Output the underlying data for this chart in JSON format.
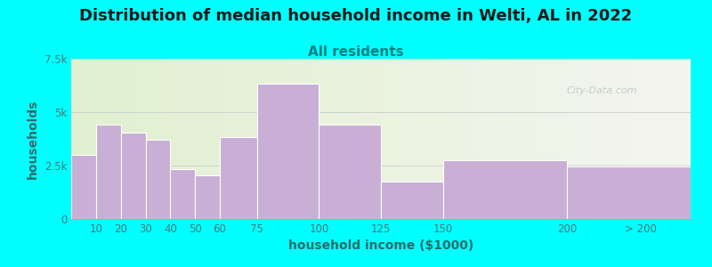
{
  "title": "Distribution of median household income in Welti, AL in 2022",
  "subtitle": "All residents",
  "xlabel": "household income ($1000)",
  "ylabel": "households",
  "bar_color": "#c9aed6",
  "bar_edgecolor": "#ffffff",
  "background_color": "#00ffff",
  "plot_bg_color_left": "#e0f0d0",
  "plot_bg_color_right": "#f5f5f0",
  "bin_edges": [
    0,
    10,
    20,
    30,
    40,
    50,
    60,
    75,
    100,
    125,
    150,
    200,
    250
  ],
  "values": [
    3000,
    4400,
    4050,
    3700,
    2350,
    2050,
    3850,
    6350,
    4400,
    1750,
    2750,
    2450
  ],
  "xtick_positions": [
    10,
    20,
    30,
    40,
    50,
    60,
    75,
    100,
    125,
    150,
    200,
    230
  ],
  "xtick_labels": [
    "10",
    "20",
    "30",
    "40",
    "50",
    "60",
    "75",
    "100",
    "125",
    "150",
    "200",
    "> 200"
  ],
  "ylim": [
    0,
    7500
  ],
  "xlim": [
    0,
    250
  ],
  "yticks": [
    0,
    2500,
    5000,
    7500
  ],
  "ytick_labels": [
    "0",
    "2.5k",
    "5k",
    "7.5k"
  ],
  "title_fontsize": 13,
  "subtitle_fontsize": 11,
  "label_fontsize": 10,
  "tick_fontsize": 8.5,
  "watermark_text": "City-Data.com",
  "title_color": "#1a1a1a",
  "subtitle_color": "#008080",
  "axis_label_color": "#2d6b6b",
  "tick_color": "#4a7a7a"
}
